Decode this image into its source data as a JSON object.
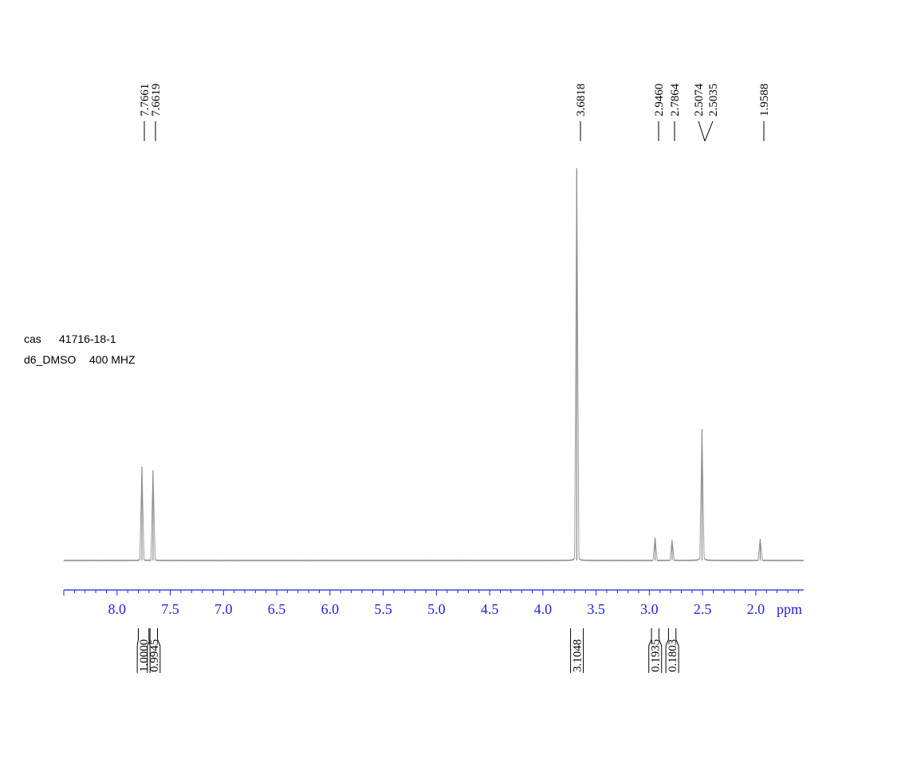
{
  "sample": {
    "cas_label": "cas",
    "cas_number": "41716-18-1",
    "solvent": "d6_DMSO",
    "frequency": "400 MHZ"
  },
  "chart_data": {
    "type": "line",
    "title": "",
    "xlabel": "ppm",
    "ylabel": "",
    "xlim": [
      8.5,
      1.55
    ],
    "x_reversed": true,
    "grid": false,
    "x_ticks": [
      "8.0",
      "7.5",
      "7.0",
      "6.5",
      "6.0",
      "5.5",
      "5.0",
      "4.5",
      "4.0",
      "3.5",
      "3.0",
      "2.5",
      "2.0"
    ],
    "peak_labels": [
      "7.7661",
      "7.6619",
      "3.6818",
      "2.9460",
      "2.7864",
      "2.5074",
      "2.5035",
      "1.9588"
    ],
    "peaks": [
      {
        "x": 7.7661,
        "height": 0.24
      },
      {
        "x": 7.6619,
        "height": 0.23
      },
      {
        "x": 3.6818,
        "height": 1.0
      },
      {
        "x": 2.946,
        "height": 0.058
      },
      {
        "x": 2.7864,
        "height": 0.052
      },
      {
        "x": 2.5055,
        "height": 0.335
      },
      {
        "x": 1.9588,
        "height": 0.055
      }
    ],
    "integrals": [
      {
        "from": 7.8,
        "to": 7.7,
        "value": "1.0000"
      },
      {
        "from": 7.69,
        "to": 7.62,
        "value": "0.9945"
      },
      {
        "from": 3.74,
        "to": 3.62,
        "value": "3.1048"
      },
      {
        "from": 2.98,
        "to": 2.91,
        "value": "0.1935"
      },
      {
        "from": 2.82,
        "to": 2.75,
        "value": "0.1803"
      }
    ]
  }
}
